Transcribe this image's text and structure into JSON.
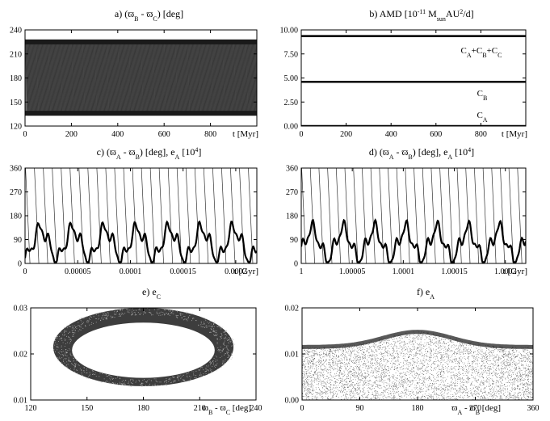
{
  "colors": {
    "ink": "#000000",
    "background": "#ffffff"
  },
  "chart_data": [
    {
      "id": "a",
      "type": "scatter",
      "title": "a) (ϖB - ϖC) [deg]",
      "xlabel": "t [Myr]",
      "ylabel": "",
      "xlim": [
        0,
        1000
      ],
      "ylim": [
        120,
        240
      ],
      "xticks": [
        "0",
        "200",
        "400",
        "600",
        "800"
      ],
      "yticks": [
        "120",
        "150",
        "180",
        "210",
        "240"
      ],
      "bands": [
        {
          "from": 133,
          "to": 228,
          "note": "dense oscillation envelope"
        }
      ]
    },
    {
      "id": "b",
      "type": "line",
      "title": "b) AMD [10^-11 Msun AU^2/d]",
      "xlabel": "t [Myr]",
      "ylabel": "",
      "xlim": [
        0,
        1000
      ],
      "ylim": [
        0,
        10
      ],
      "xticks": [
        "0",
        "200",
        "400",
        "600",
        "800"
      ],
      "yticks": [
        "0.00",
        "2.50",
        "5.00",
        "7.50",
        "10.00"
      ],
      "series": [
        {
          "name": "CA+CB+CC",
          "values": [
            9.35,
            9.35
          ]
        },
        {
          "name": "CB",
          "values": [
            4.6,
            4.6
          ]
        },
        {
          "name": "CA",
          "values": [
            0.0,
            0.0
          ]
        }
      ],
      "x": [
        0,
        1000
      ]
    },
    {
      "id": "c",
      "type": "line",
      "title": "c) (ϖA - ϖB) [deg], eA [10^4]",
      "xlabel": "t [Gyr]",
      "ylabel": "",
      "xlim": [
        0,
        0.00022
      ],
      "ylim": [
        0,
        360
      ],
      "xticks": [
        "0",
        "0.00005",
        "0.0001",
        "0.00015",
        "0.0002"
      ],
      "yticks": [
        "0",
        "90",
        "180",
        "270",
        "360"
      ],
      "series": [
        {
          "name": "ϖA - ϖB",
          "values": []
        },
        {
          "name": "eA",
          "values": []
        }
      ]
    },
    {
      "id": "d",
      "type": "line",
      "title": "d) (ϖA - ϖB) [deg], eA [10^4]",
      "xlabel": "t [Gyr]",
      "ylabel": "",
      "xlim": [
        1,
        1.00022
      ],
      "ylim": [
        0,
        360
      ],
      "xticks": [
        "1",
        "1.00005",
        "1.0001",
        "1.00015",
        "1.0002"
      ],
      "yticks": [
        "0",
        "90",
        "180",
        "270",
        "360"
      ],
      "series": [
        {
          "name": "ϖA - ϖB",
          "values": []
        },
        {
          "name": "eA",
          "values": []
        }
      ]
    },
    {
      "id": "e",
      "type": "scatter",
      "title": "e) eC",
      "xlabel": "ϖB - ϖC [deg]",
      "ylabel": "",
      "xlim": [
        120,
        240
      ],
      "ylim": [
        0.01,
        0.03
      ],
      "xticks": [
        "120",
        "150",
        "180",
        "210",
        "240"
      ],
      "yticks": [
        "0.01",
        "0.02",
        "0.03"
      ],
      "ring": {
        "center_x": 180,
        "center_y": 0.0215,
        "outer_rx": 48,
        "outer_ry": 0.0085,
        "inner_rx": 38,
        "inner_ry": 0.006
      }
    },
    {
      "id": "f",
      "type": "scatter",
      "title": "f) eA",
      "xlabel": "ϖA - ϖB [deg]",
      "ylabel": "",
      "xlim": [
        0,
        360
      ],
      "ylim": [
        0.0,
        0.02
      ],
      "xticks": [
        "0",
        "90",
        "180",
        "270",
        "360"
      ],
      "yticks": [
        "0.00",
        "0.01",
        "0.02"
      ]
    }
  ]
}
